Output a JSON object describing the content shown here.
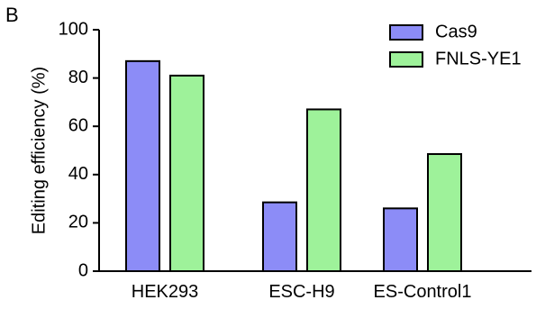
{
  "panel_label": "B",
  "chart_data": {
    "type": "bar",
    "categories": [
      "HEK293",
      "ESC-H9",
      "ES-Control1"
    ],
    "series": [
      {
        "name": "Cas9",
        "values": [
          87,
          28.5,
          26
        ],
        "color": "#8c8cf7"
      },
      {
        "name": "FNLS-YE1",
        "values": [
          81,
          67,
          48.5
        ],
        "color": "#9ef29a"
      }
    ],
    "title": "",
    "xlabel": "",
    "ylabel": "Editing efficiency (%)",
    "ylim": [
      0,
      100
    ],
    "yticks": [
      0,
      20,
      40,
      60,
      80,
      100
    ],
    "grid": false,
    "legend_position": "top-right"
  }
}
